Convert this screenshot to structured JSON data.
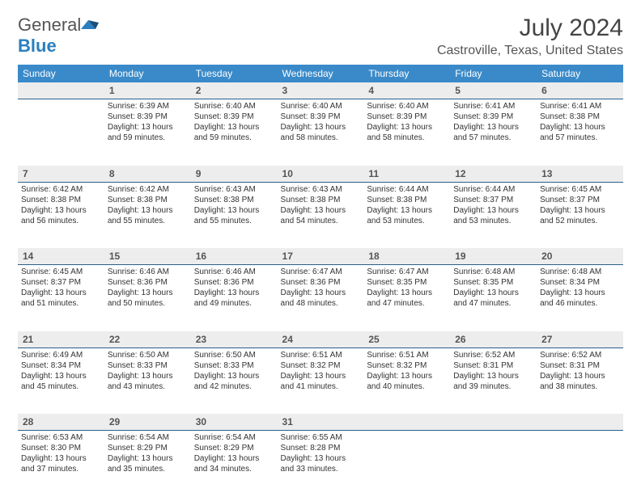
{
  "logo": {
    "word1": "General",
    "word2": "Blue"
  },
  "header": {
    "month": "July 2024",
    "location": "Castroville, Texas, United States"
  },
  "dayNames": [
    "Sunday",
    "Monday",
    "Tuesday",
    "Wednesday",
    "Thursday",
    "Friday",
    "Saturday"
  ],
  "colors": {
    "headerBg": "#3a8ac9",
    "dayBg": "#ededed",
    "ruleColor": "#2a5f8a",
    "textColor": "#333333"
  },
  "weeks": [
    {
      "nums": [
        "",
        "1",
        "2",
        "3",
        "4",
        "5",
        "6"
      ],
      "cells": [
        null,
        {
          "sr": "Sunrise: 6:39 AM",
          "ss": "Sunset: 8:39 PM",
          "dl1": "Daylight: 13 hours",
          "dl2": "and 59 minutes."
        },
        {
          "sr": "Sunrise: 6:40 AM",
          "ss": "Sunset: 8:39 PM",
          "dl1": "Daylight: 13 hours",
          "dl2": "and 59 minutes."
        },
        {
          "sr": "Sunrise: 6:40 AM",
          "ss": "Sunset: 8:39 PM",
          "dl1": "Daylight: 13 hours",
          "dl2": "and 58 minutes."
        },
        {
          "sr": "Sunrise: 6:40 AM",
          "ss": "Sunset: 8:39 PM",
          "dl1": "Daylight: 13 hours",
          "dl2": "and 58 minutes."
        },
        {
          "sr": "Sunrise: 6:41 AM",
          "ss": "Sunset: 8:39 PM",
          "dl1": "Daylight: 13 hours",
          "dl2": "and 57 minutes."
        },
        {
          "sr": "Sunrise: 6:41 AM",
          "ss": "Sunset: 8:38 PM",
          "dl1": "Daylight: 13 hours",
          "dl2": "and 57 minutes."
        }
      ]
    },
    {
      "nums": [
        "7",
        "8",
        "9",
        "10",
        "11",
        "12",
        "13"
      ],
      "cells": [
        {
          "sr": "Sunrise: 6:42 AM",
          "ss": "Sunset: 8:38 PM",
          "dl1": "Daylight: 13 hours",
          "dl2": "and 56 minutes."
        },
        {
          "sr": "Sunrise: 6:42 AM",
          "ss": "Sunset: 8:38 PM",
          "dl1": "Daylight: 13 hours",
          "dl2": "and 55 minutes."
        },
        {
          "sr": "Sunrise: 6:43 AM",
          "ss": "Sunset: 8:38 PM",
          "dl1": "Daylight: 13 hours",
          "dl2": "and 55 minutes."
        },
        {
          "sr": "Sunrise: 6:43 AM",
          "ss": "Sunset: 8:38 PM",
          "dl1": "Daylight: 13 hours",
          "dl2": "and 54 minutes."
        },
        {
          "sr": "Sunrise: 6:44 AM",
          "ss": "Sunset: 8:38 PM",
          "dl1": "Daylight: 13 hours",
          "dl2": "and 53 minutes."
        },
        {
          "sr": "Sunrise: 6:44 AM",
          "ss": "Sunset: 8:37 PM",
          "dl1": "Daylight: 13 hours",
          "dl2": "and 53 minutes."
        },
        {
          "sr": "Sunrise: 6:45 AM",
          "ss": "Sunset: 8:37 PM",
          "dl1": "Daylight: 13 hours",
          "dl2": "and 52 minutes."
        }
      ]
    },
    {
      "nums": [
        "14",
        "15",
        "16",
        "17",
        "18",
        "19",
        "20"
      ],
      "cells": [
        {
          "sr": "Sunrise: 6:45 AM",
          "ss": "Sunset: 8:37 PM",
          "dl1": "Daylight: 13 hours",
          "dl2": "and 51 minutes."
        },
        {
          "sr": "Sunrise: 6:46 AM",
          "ss": "Sunset: 8:36 PM",
          "dl1": "Daylight: 13 hours",
          "dl2": "and 50 minutes."
        },
        {
          "sr": "Sunrise: 6:46 AM",
          "ss": "Sunset: 8:36 PM",
          "dl1": "Daylight: 13 hours",
          "dl2": "and 49 minutes."
        },
        {
          "sr": "Sunrise: 6:47 AM",
          "ss": "Sunset: 8:36 PM",
          "dl1": "Daylight: 13 hours",
          "dl2": "and 48 minutes."
        },
        {
          "sr": "Sunrise: 6:47 AM",
          "ss": "Sunset: 8:35 PM",
          "dl1": "Daylight: 13 hours",
          "dl2": "and 47 minutes."
        },
        {
          "sr": "Sunrise: 6:48 AM",
          "ss": "Sunset: 8:35 PM",
          "dl1": "Daylight: 13 hours",
          "dl2": "and 47 minutes."
        },
        {
          "sr": "Sunrise: 6:48 AM",
          "ss": "Sunset: 8:34 PM",
          "dl1": "Daylight: 13 hours",
          "dl2": "and 46 minutes."
        }
      ]
    },
    {
      "nums": [
        "21",
        "22",
        "23",
        "24",
        "25",
        "26",
        "27"
      ],
      "cells": [
        {
          "sr": "Sunrise: 6:49 AM",
          "ss": "Sunset: 8:34 PM",
          "dl1": "Daylight: 13 hours",
          "dl2": "and 45 minutes."
        },
        {
          "sr": "Sunrise: 6:50 AM",
          "ss": "Sunset: 8:33 PM",
          "dl1": "Daylight: 13 hours",
          "dl2": "and 43 minutes."
        },
        {
          "sr": "Sunrise: 6:50 AM",
          "ss": "Sunset: 8:33 PM",
          "dl1": "Daylight: 13 hours",
          "dl2": "and 42 minutes."
        },
        {
          "sr": "Sunrise: 6:51 AM",
          "ss": "Sunset: 8:32 PM",
          "dl1": "Daylight: 13 hours",
          "dl2": "and 41 minutes."
        },
        {
          "sr": "Sunrise: 6:51 AM",
          "ss": "Sunset: 8:32 PM",
          "dl1": "Daylight: 13 hours",
          "dl2": "and 40 minutes."
        },
        {
          "sr": "Sunrise: 6:52 AM",
          "ss": "Sunset: 8:31 PM",
          "dl1": "Daylight: 13 hours",
          "dl2": "and 39 minutes."
        },
        {
          "sr": "Sunrise: 6:52 AM",
          "ss": "Sunset: 8:31 PM",
          "dl1": "Daylight: 13 hours",
          "dl2": "and 38 minutes."
        }
      ]
    },
    {
      "nums": [
        "28",
        "29",
        "30",
        "31",
        "",
        "",
        ""
      ],
      "cells": [
        {
          "sr": "Sunrise: 6:53 AM",
          "ss": "Sunset: 8:30 PM",
          "dl1": "Daylight: 13 hours",
          "dl2": "and 37 minutes."
        },
        {
          "sr": "Sunrise: 6:54 AM",
          "ss": "Sunset: 8:29 PM",
          "dl1": "Daylight: 13 hours",
          "dl2": "and 35 minutes."
        },
        {
          "sr": "Sunrise: 6:54 AM",
          "ss": "Sunset: 8:29 PM",
          "dl1": "Daylight: 13 hours",
          "dl2": "and 34 minutes."
        },
        {
          "sr": "Sunrise: 6:55 AM",
          "ss": "Sunset: 8:28 PM",
          "dl1": "Daylight: 13 hours",
          "dl2": "and 33 minutes."
        },
        null,
        null,
        null
      ]
    }
  ]
}
